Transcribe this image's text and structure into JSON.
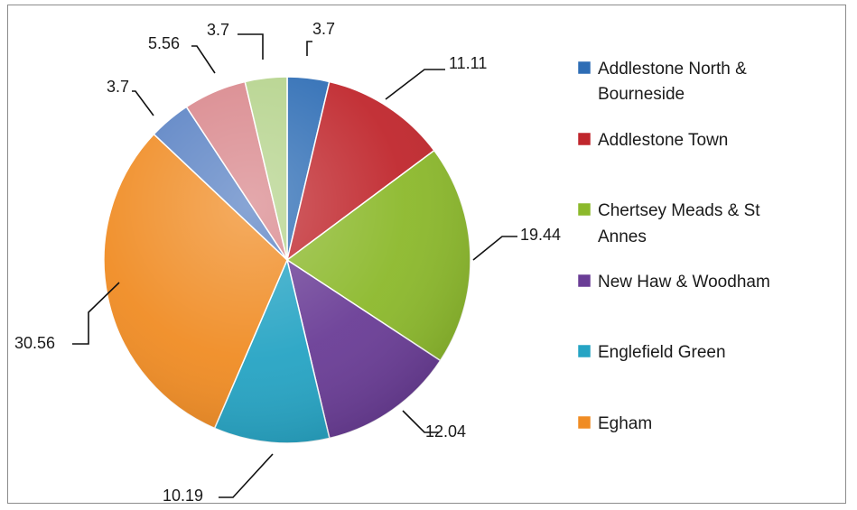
{
  "chart_data": {
    "type": "pie",
    "start_angle_deg": 0,
    "direction": "clockwise",
    "legend_position": "right",
    "slices": [
      {
        "label": "Addlestone North & Bourneside",
        "value": 3.7,
        "value_label": "3.7",
        "color": "#2e6db5",
        "in_legend": true
      },
      {
        "label": "Addlestone Town",
        "value": 11.11,
        "value_label": "11.11",
        "color": "#c0272d",
        "in_legend": true
      },
      {
        "label": "Chertsey Meads & St Annes",
        "value": 19.44,
        "value_label": "19.44",
        "color": "#8cb92c",
        "in_legend": true
      },
      {
        "label": "New Haw & Woodham",
        "value": 12.04,
        "value_label": "12.04",
        "color": "#6a3d96",
        "in_legend": true
      },
      {
        "label": "Englefield Green",
        "value": 10.19,
        "value_label": "10.19",
        "color": "#26a4c4",
        "in_legend": true
      },
      {
        "label": "Egham",
        "value": 30.56,
        "value_label": "30.56",
        "color": "#f08c24",
        "in_legend": true
      },
      {
        "label": "",
        "value": 3.7,
        "value_label": "3.7",
        "color": "#5a82c4",
        "in_legend": false
      },
      {
        "label": "",
        "value": 5.56,
        "value_label": "5.56",
        "color": "#d9878c",
        "in_legend": false
      },
      {
        "label": "",
        "value": 3.7,
        "value_label": "3.7",
        "color": "#b5d38c",
        "in_legend": false
      }
    ]
  }
}
